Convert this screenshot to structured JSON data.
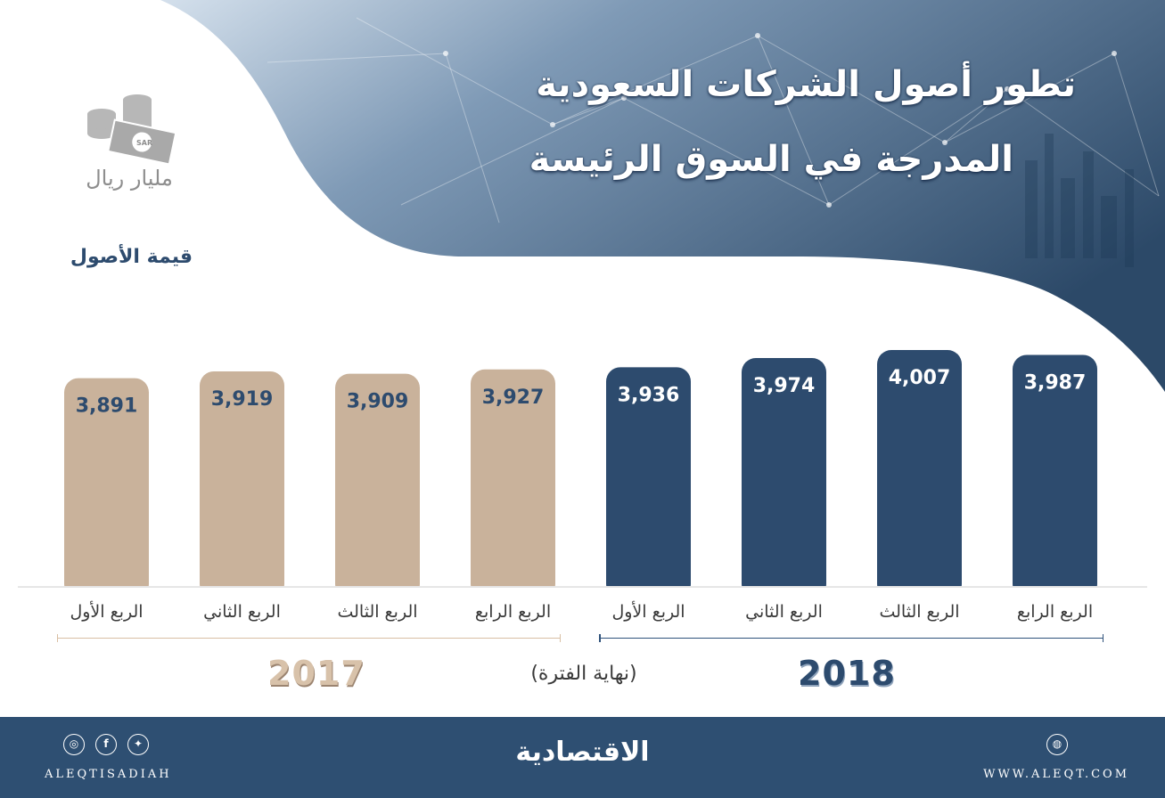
{
  "title": {
    "line1": "تطور أصول الشركات السعودية",
    "line2": "المدرجة في السوق الرئيسة"
  },
  "unit": {
    "icon": "coins-cash-icon",
    "currency_badge": "SAR",
    "label": "مليار ريال"
  },
  "legend_label": "قيمة الأصول",
  "chart_data": {
    "type": "bar",
    "title": "تطور أصول الشركات السعودية المدرجة في السوق الرئيسة",
    "ylabel": "مليار ريال",
    "categories": [
      "الربع الأول",
      "الربع الثاني",
      "الربع الثالث",
      "الربع الرابع",
      "الربع الأول",
      "الربع الثاني",
      "الربع الثالث",
      "الربع الرابع"
    ],
    "groups": [
      "2017",
      "2017",
      "2017",
      "2017",
      "2018",
      "2018",
      "2018",
      "2018"
    ],
    "values": [
      3891,
      3919,
      3909,
      3927,
      3936,
      3974,
      4007,
      3987
    ],
    "value_labels": [
      "3,891",
      "3,919",
      "3,909",
      "3,927",
      "3,936",
      "3,974",
      "4,007",
      "3,987"
    ],
    "colors": {
      "2017": "#c9b29b",
      "2018": "#2d4b6e"
    },
    "label_colors": {
      "2017": "#2d4b6e",
      "2018": "#ffffff"
    },
    "grid": false
  },
  "years": {
    "y2017": "2017",
    "y2018": "2018"
  },
  "period_note": "(نهاية الفترة)",
  "footer": {
    "brand": "الاقتصادية",
    "handle": "ALEQTISADIAH",
    "website": "WWW.ALEQT.COM",
    "icons": [
      "instagram-icon",
      "facebook-icon",
      "twitter-icon",
      "web-icon"
    ]
  }
}
